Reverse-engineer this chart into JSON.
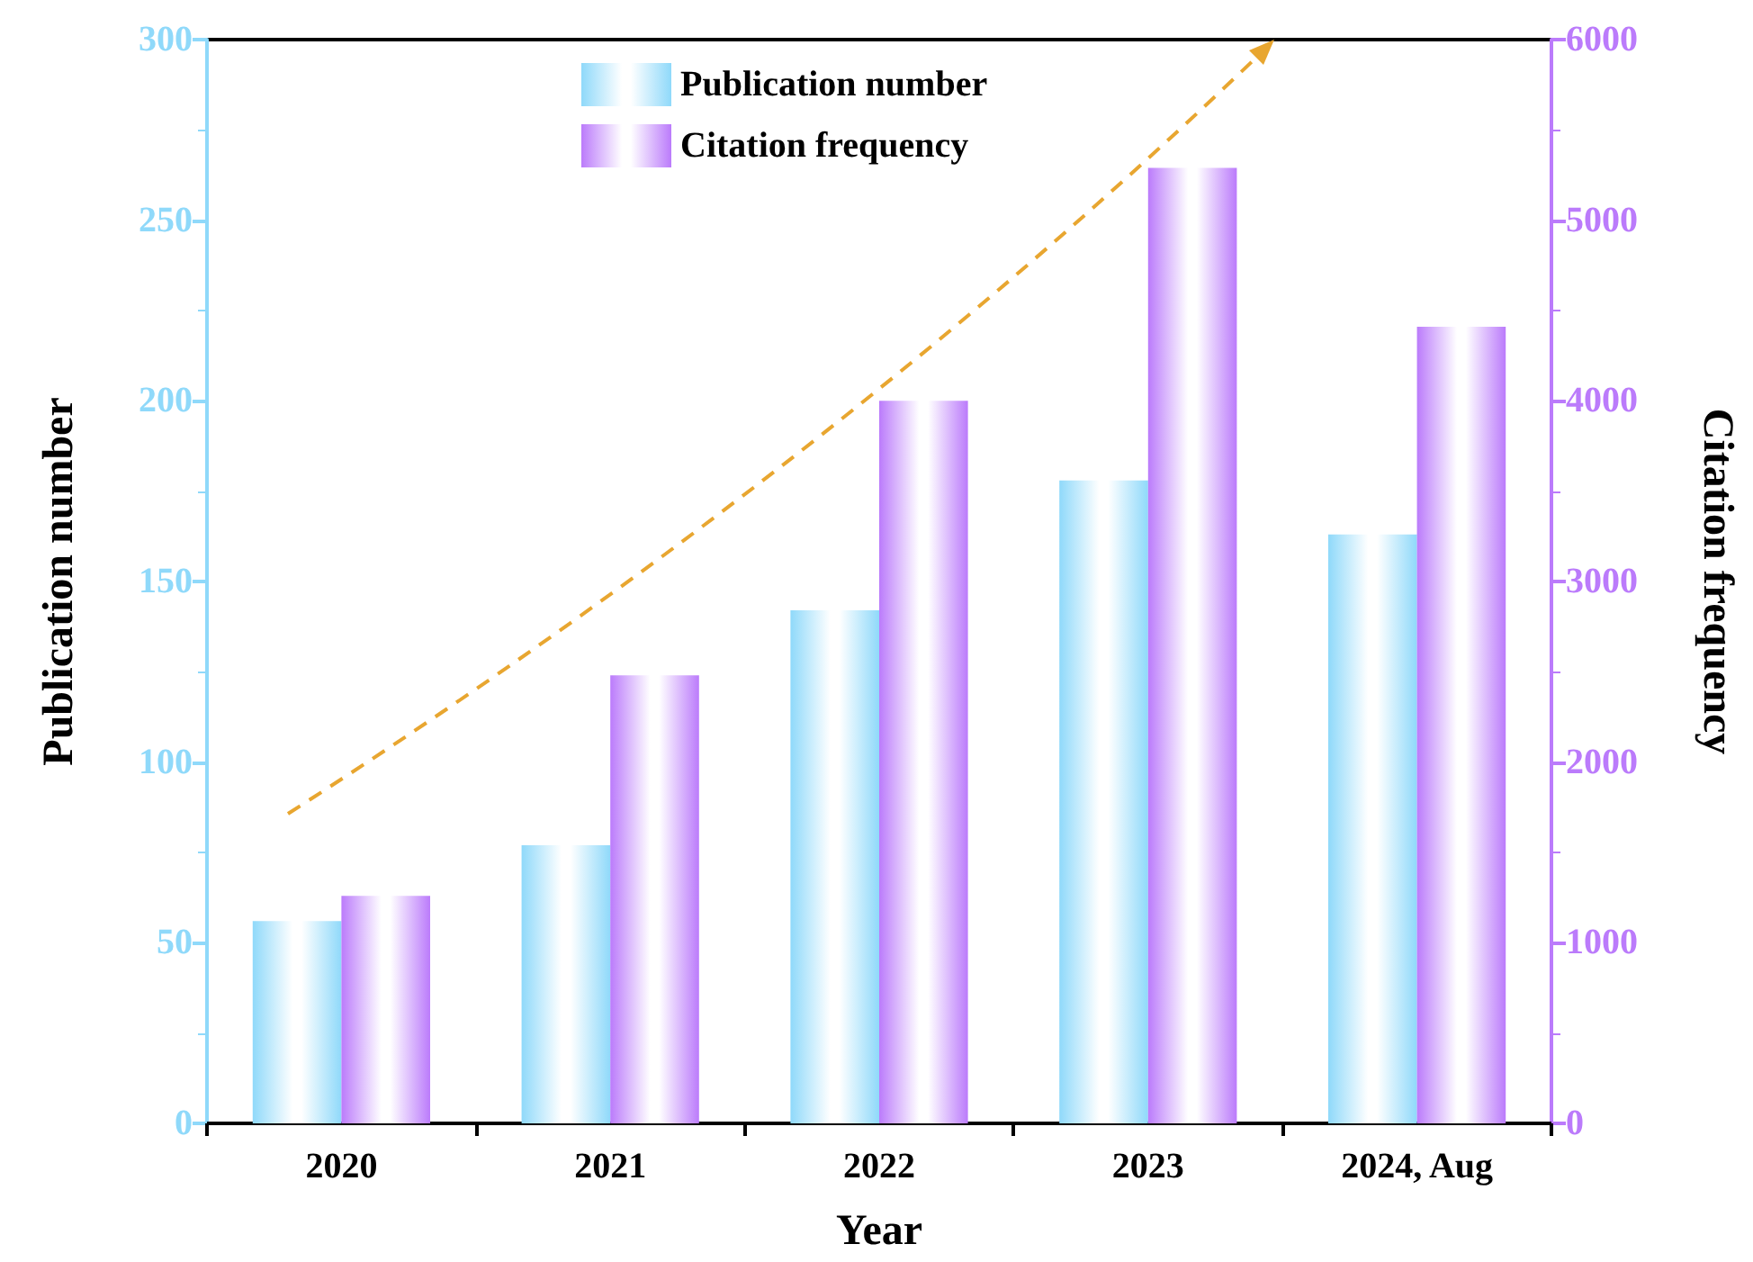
{
  "chart_data": {
    "type": "bar",
    "xlabel": "Year",
    "ylabel": "Publication number",
    "y2label": "Citation frequency",
    "categories": [
      "2020",
      "2021",
      "2022",
      "2023",
      "2024, Aug"
    ],
    "series": [
      {
        "name": "Publication number",
        "color": "#8fd9fa",
        "values": [
          56,
          77,
          142,
          178,
          163
        ]
      },
      {
        "name": "Citation frequency",
        "color": "#bb7bfb",
        "axis": "y2",
        "values": [
          1260,
          2480,
          4000,
          5290,
          4410
        ]
      }
    ],
    "ylim": [
      0,
      300
    ],
    "yticks": [
      0,
      50,
      100,
      150,
      200,
      250,
      300
    ],
    "y2lim": [
      0,
      6000
    ],
    "y2ticks": [
      0,
      1000,
      2000,
      3000,
      4000,
      5000,
      6000
    ],
    "grid": false,
    "legend": "top"
  }
}
